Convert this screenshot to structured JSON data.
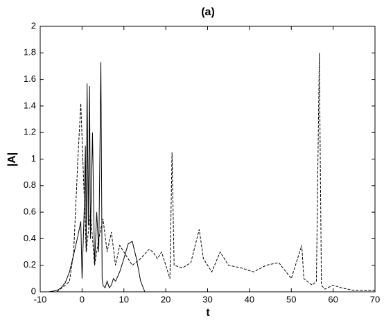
{
  "chart_data": {
    "type": "line",
    "title": "(a)",
    "x_label": "t",
    "y_label": "|A|",
    "xlim": [
      -10,
      70
    ],
    "xticks": [
      -10,
      0,
      10,
      20,
      30,
      40,
      50,
      60,
      70
    ],
    "ylim": [
      0,
      2
    ],
    "yticks": [
      0,
      0.2,
      0.4,
      0.6,
      0.8,
      1,
      1.2,
      1.4,
      1.6,
      1.8,
      2
    ],
    "grid": false,
    "series": [
      {
        "color": "#000000",
        "style": "solid",
        "x": [
          -8,
          -6,
          -5,
          -4,
          -3,
          -2,
          -1,
          -0.3,
          0,
          0.5,
          0.8,
          1,
          1.2,
          1.5,
          1.8,
          2,
          2.5,
          3,
          3.5,
          4,
          4.5,
          4.8,
          5,
          5.5,
          6,
          6.5,
          7,
          7.5,
          8,
          9,
          10,
          11,
          12,
          13,
          14,
          15
        ],
        "values": [
          0,
          0.01,
          0.03,
          0.07,
          0.15,
          0.28,
          0.42,
          0.53,
          0.1,
          0.6,
          1.1,
          0.3,
          1.57,
          0.5,
          1.55,
          0.4,
          1.2,
          0.2,
          0.6,
          0.3,
          1.73,
          0.1,
          0.05,
          0.03,
          0.08,
          0.03,
          0.05,
          0.1,
          0.08,
          0.15,
          0.25,
          0.36,
          0.38,
          0.25,
          0.08,
          0
        ]
      },
      {
        "color": "#000000",
        "style": "dashed",
        "x": [
          -10,
          -6,
          -4,
          -3,
          -2,
          -1,
          -0.3,
          0.3,
          1,
          2,
          3,
          4,
          5,
          6,
          7,
          8,
          9,
          10,
          12,
          14,
          16,
          17,
          18,
          19,
          20,
          21,
          21.5,
          22,
          24,
          26,
          28,
          29,
          31,
          33,
          35,
          38,
          41,
          44,
          47,
          50,
          52.5,
          53,
          55,
          56,
          56.7,
          57.2,
          58,
          60,
          62,
          65,
          70
        ],
        "values": [
          0,
          0,
          0.05,
          0.08,
          0.3,
          1.0,
          1.42,
          0.9,
          0.3,
          0.6,
          0.2,
          0.4,
          0.55,
          0.3,
          0.45,
          0.2,
          0.35,
          0.3,
          0.2,
          0.25,
          0.32,
          0.3,
          0.25,
          0.3,
          0.2,
          0.1,
          1.05,
          0.2,
          0.18,
          0.22,
          0.47,
          0.25,
          0.15,
          0.3,
          0.2,
          0.18,
          0.15,
          0.2,
          0.22,
          0.1,
          0.35,
          0.1,
          0.05,
          0.08,
          1.8,
          0.05,
          0.02,
          0.05,
          0.03,
          0.01,
          0.01
        ]
      }
    ]
  }
}
